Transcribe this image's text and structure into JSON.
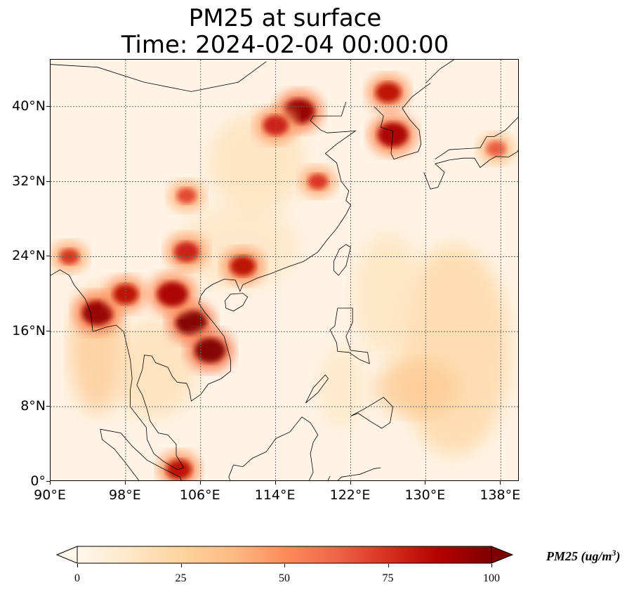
{
  "title": {
    "line1": "PM25 at surface",
    "line2": "Time: 2024-02-04 00:00:00"
  },
  "map": {
    "type": "heatmap",
    "projection": "PlateCarree",
    "lon_range": [
      90,
      140
    ],
    "lat_range": [
      0,
      45
    ],
    "gridlines": "dotted",
    "coastlines": true,
    "colormap": "OrRd",
    "lon_ticks": [
      {
        "value": 90,
        "label": "90°E"
      },
      {
        "value": 98,
        "label": "98°E"
      },
      {
        "value": 106,
        "label": "106°E"
      },
      {
        "value": 114,
        "label": "114°E"
      },
      {
        "value": 122,
        "label": "122°E"
      },
      {
        "value": 130,
        "label": "130°E"
      },
      {
        "value": 138,
        "label": "138°E"
      }
    ],
    "lat_ticks": [
      {
        "value": 0,
        "label": "0°"
      },
      {
        "value": 8,
        "label": "8°N"
      },
      {
        "value": 16,
        "label": "16°N"
      },
      {
        "value": 24,
        "label": "24°N"
      },
      {
        "value": 32,
        "label": "32°N"
      },
      {
        "value": 40,
        "label": "40°N"
      }
    ]
  },
  "chart_data": {
    "type": "heatmap",
    "title": "PM25 at surface",
    "subtitle": "Time: 2024-02-04 00:00:00",
    "xlim": [
      90,
      140
    ],
    "ylim": [
      0,
      45
    ],
    "hotspots": [
      {
        "lon": 105.0,
        "lat": 17.0,
        "value": 100
      },
      {
        "lon": 107.0,
        "lat": 14.0,
        "value": 100
      },
      {
        "lon": 103.0,
        "lat": 20.0,
        "value": 90
      },
      {
        "lon": 95.0,
        "lat": 18.0,
        "value": 95
      },
      {
        "lon": 98.0,
        "lat": 20.0,
        "value": 85
      },
      {
        "lon": 116.5,
        "lat": 39.5,
        "value": 95
      },
      {
        "lon": 114.0,
        "lat": 38.0,
        "value": 80
      },
      {
        "lon": 126.0,
        "lat": 41.5,
        "value": 85
      },
      {
        "lon": 126.5,
        "lat": 37.0,
        "value": 90
      },
      {
        "lon": 110.5,
        "lat": 23.0,
        "value": 85
      },
      {
        "lon": 104.5,
        "lat": 24.5,
        "value": 80
      },
      {
        "lon": 104.5,
        "lat": 30.5,
        "value": 70
      },
      {
        "lon": 118.5,
        "lat": 32.0,
        "value": 75
      },
      {
        "lon": 103.7,
        "lat": 1.3,
        "value": 85
      },
      {
        "lon": 92.0,
        "lat": 24.0,
        "value": 75
      },
      {
        "lon": 137.5,
        "lat": 35.5,
        "value": 65
      }
    ],
    "colorbar": {
      "label": "PM25 (ug/m",
      "label_sup": "3",
      "label_close": ")",
      "range": [
        0,
        100
      ],
      "extend": "both",
      "ticks": [
        "0",
        "25",
        "50",
        "75",
        "100"
      ]
    }
  }
}
